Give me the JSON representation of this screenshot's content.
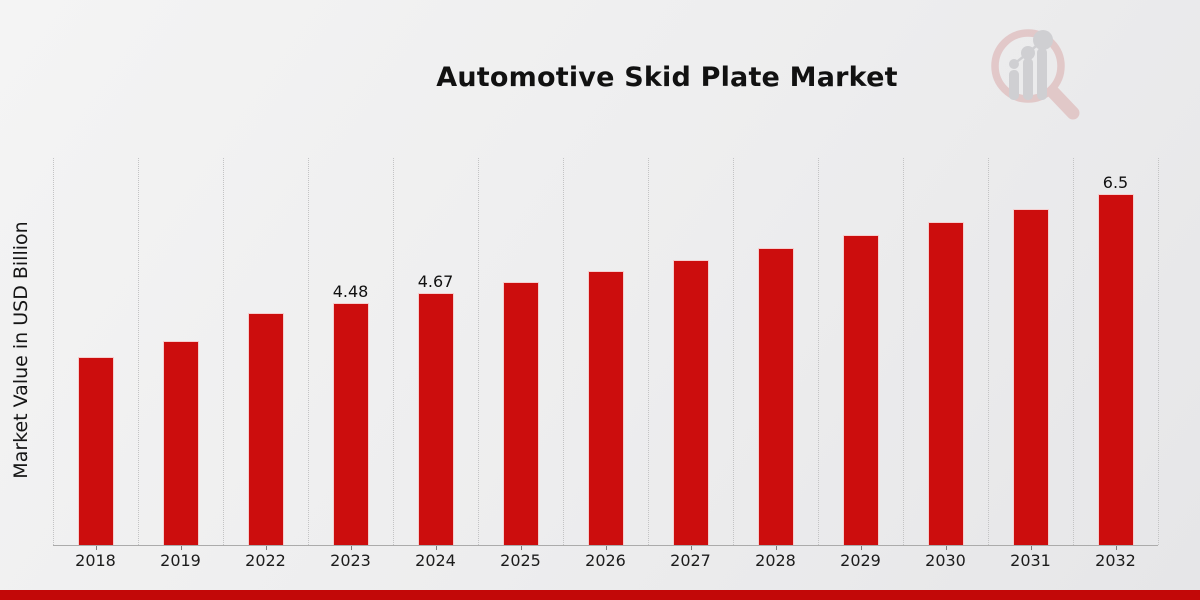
{
  "chart_data": {
    "type": "bar",
    "title": "Automotive Skid Plate Market",
    "xlabel": "",
    "ylabel": "Market Value in USD Billion",
    "categories": [
      "2018",
      "2019",
      "2022",
      "2023",
      "2024",
      "2025",
      "2026",
      "2027",
      "2028",
      "2029",
      "2030",
      "2031",
      "2032"
    ],
    "values": [
      3.48,
      3.78,
      4.3,
      4.48,
      4.67,
      4.87,
      5.07,
      5.28,
      5.5,
      5.74,
      5.98,
      6.23,
      6.5
    ],
    "data_labels": [
      "",
      "",
      "",
      "4.48",
      "4.67",
      "",
      "",
      "",
      "",
      "",
      "",
      "",
      "6.5"
    ],
    "ylim": [
      0,
      7.17
    ],
    "y_axis_tick_labels": "none",
    "legend": "none",
    "grid": "vertical dotted gridlines at category boundaries",
    "bar_color": "#cc0d0d"
  },
  "footer": {
    "stripe_color": "#c20808"
  },
  "logo": {
    "name": "magnifier-bar-chart-watermark",
    "ring_color": "#d9a6a6",
    "element_color": "#b4b4b9"
  }
}
